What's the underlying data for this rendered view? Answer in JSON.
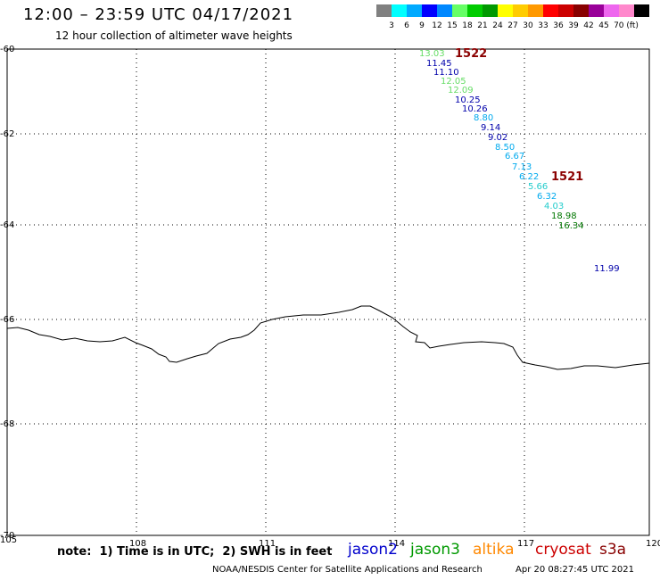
{
  "header": {
    "title": "12:00 – 23:59 UTC 04/17/2021",
    "subtitle": "12 hour collection of altimeter wave heights"
  },
  "color_scale": {
    "colors": [
      "#808080",
      "#00ffff",
      "#00aaff",
      "#0000ff",
      "#0088ff",
      "#66ff66",
      "#00cc00",
      "#009900",
      "#ffff00",
      "#ffcc00",
      "#ff9900",
      "#ff0000",
      "#cc0000",
      "#880000",
      "#990099",
      "#ee66ee",
      "#ff88cc",
      "#000000"
    ],
    "labels": [
      "3",
      "6",
      "9",
      "12",
      "15",
      "18",
      "21",
      "24",
      "27",
      "30",
      "33",
      "36",
      "39",
      "42",
      "45",
      "70 (ft)"
    ]
  },
  "axes": {
    "lon_labels": [
      "105",
      "108",
      "111",
      "114",
      "117",
      "120"
    ],
    "lat_labels": [
      "-60",
      "-62",
      "-64",
      "-66",
      "-68",
      "-70"
    ]
  },
  "tracks": [
    {
      "id": "1522",
      "color": "#8b0000"
    },
    {
      "id": "1521",
      "color": "#8b0000"
    }
  ],
  "measurements": [
    {
      "value": "13.03",
      "color": "#66dd66"
    },
    {
      "value": "11.45",
      "color": "#0000aa"
    },
    {
      "value": "11.10",
      "color": "#0000aa"
    },
    {
      "value": "12.05",
      "color": "#66dd66"
    },
    {
      "value": "12.09",
      "color": "#66dd66"
    },
    {
      "value": "10.25",
      "color": "#0000aa"
    },
    {
      "value": "10.26",
      "color": "#0000aa"
    },
    {
      "value": "8.80",
      "color": "#00aaee"
    },
    {
      "value": "9.14",
      "color": "#0000aa"
    },
    {
      "value": "9.02",
      "color": "#0000aa"
    },
    {
      "value": "8.50",
      "color": "#00aaee"
    },
    {
      "value": "6.67",
      "color": "#00aaee"
    },
    {
      "value": "7.13",
      "color": "#00aaee"
    },
    {
      "value": "6.22",
      "color": "#00aaee"
    },
    {
      "value": "5.66",
      "color": "#22cccc"
    },
    {
      "value": "6.32",
      "color": "#00aaee"
    },
    {
      "value": "4.03",
      "color": "#22cccc"
    },
    {
      "value": "18.98",
      "color": "#007700"
    },
    {
      "value": "16.34",
      "color": "#007700"
    },
    {
      "value": "11.99",
      "color": "#0000aa"
    }
  ],
  "footer": {
    "note": "note:  1) Time is in UTC;  2) SWH is in feet",
    "credit": "NOAA/NESDIS Center for Satellite Applications and Research",
    "timestamp": "Apr 20 08:27:45 UTC 2021"
  },
  "satellites": [
    {
      "name": "jason2",
      "color": "#0000cc"
    },
    {
      "name": "jason3",
      "color": "#009900"
    },
    {
      "name": "altika",
      "color": "#ff8800"
    },
    {
      "name": "cryosat",
      "color": "#cc0000"
    },
    {
      "name": "s3a",
      "color": "#880000"
    }
  ]
}
